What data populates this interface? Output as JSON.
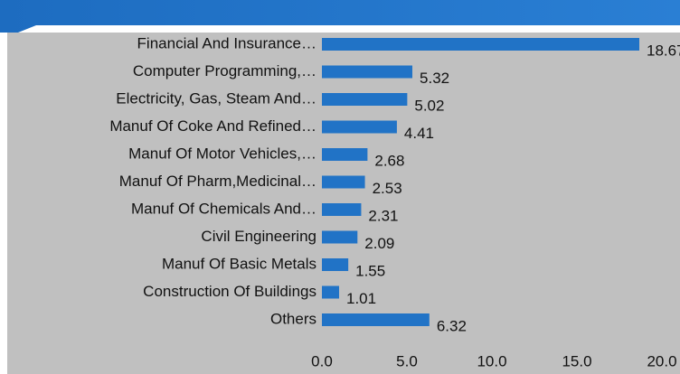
{
  "chart_data": {
    "type": "bar",
    "orientation": "horizontal",
    "categories": [
      "Financial And Insurance…",
      "Computer Programming,…",
      "Electricity, Gas, Steam And…",
      "Manuf Of Coke And Refined…",
      "Manuf Of Motor Vehicles,…",
      "Manuf Of Pharm,Medicinal…",
      "Manuf Of Chemicals And…",
      "Civil Engineering",
      "Manuf Of Basic Metals",
      "Construction Of Buildings",
      "Others"
    ],
    "values": [
      18.67,
      5.32,
      5.02,
      4.41,
      2.68,
      2.53,
      2.31,
      2.09,
      1.55,
      1.01,
      6.32
    ],
    "color": "#2173c6",
    "xlim": [
      0,
      20
    ],
    "xticks": [
      {
        "value": 0,
        "label": "0.0"
      },
      {
        "value": 5,
        "label": "5.0"
      },
      {
        "value": 10,
        "label": "10.0"
      },
      {
        "value": 15,
        "label": "15.0"
      },
      {
        "value": 20,
        "label": "20.0"
      }
    ]
  }
}
